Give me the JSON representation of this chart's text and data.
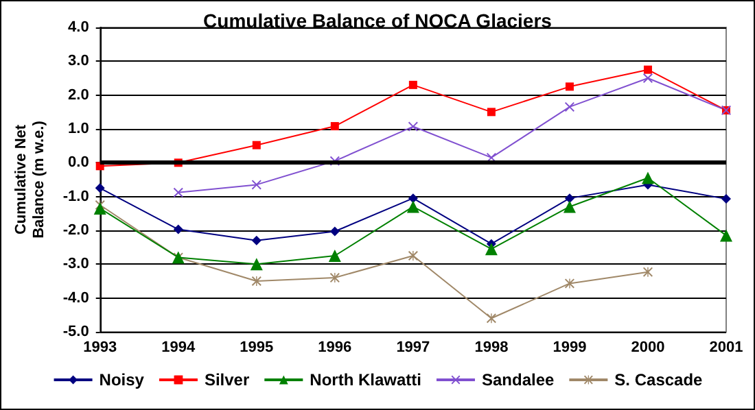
{
  "chart_data": {
    "type": "line",
    "title": "Cumulative Balance of NOCA Glaciers",
    "ylabel": "Cumulative Net\nBalance (m w.e.)",
    "categories": [
      "1993",
      "1994",
      "1995",
      "1996",
      "1997",
      "1998",
      "1999",
      "2000",
      "2001"
    ],
    "series": [
      {
        "name": "Noisy",
        "color": "#000080",
        "marker": "diamond",
        "values": [
          -0.75,
          -1.97,
          -2.3,
          -2.03,
          -1.05,
          -2.4,
          -1.05,
          -0.65,
          -1.07
        ]
      },
      {
        "name": "Silver",
        "color": "#ff0000",
        "marker": "square",
        "values": [
          -0.1,
          0.0,
          0.52,
          1.08,
          2.3,
          1.5,
          2.25,
          2.75,
          1.55
        ]
      },
      {
        "name": "North Klawatti",
        "color": "#008000",
        "marker": "triangle",
        "values": [
          -1.35,
          -2.8,
          -3.0,
          -2.75,
          -1.3,
          -2.55,
          -1.3,
          -0.45,
          -2.15
        ]
      },
      {
        "name": "Sandalee",
        "color": "#8050d0",
        "marker": "cross",
        "values": [
          null,
          -0.88,
          -0.65,
          0.05,
          1.07,
          0.15,
          1.65,
          2.5,
          1.55
        ]
      },
      {
        "name": "S. Cascade",
        "color": "#a08868",
        "marker": "star",
        "values": [
          -1.25,
          -2.8,
          -3.5,
          -3.4,
          -2.75,
          -4.6,
          -3.57,
          -3.23,
          null
        ]
      }
    ],
    "ylim": [
      -5,
      4
    ],
    "yticks": [
      {
        "value": -5,
        "label": "-5.0"
      },
      {
        "value": -4,
        "label": "-4.0"
      },
      {
        "value": -3,
        "label": "-3.0"
      },
      {
        "value": -2,
        "label": "-2.0"
      },
      {
        "value": -1,
        "label": "-1.0"
      },
      {
        "value": 0,
        "label": "0.0"
      },
      {
        "value": 1,
        "label": "1.0"
      },
      {
        "value": 2,
        "label": "2.0"
      },
      {
        "value": 3,
        "label": "3.0"
      },
      {
        "value": 4,
        "label": "4.0"
      }
    ],
    "ref_lines": [
      {
        "axis": "y",
        "value": 0,
        "color": "#000000"
      }
    ],
    "grid": "y",
    "legend": "bottom"
  }
}
